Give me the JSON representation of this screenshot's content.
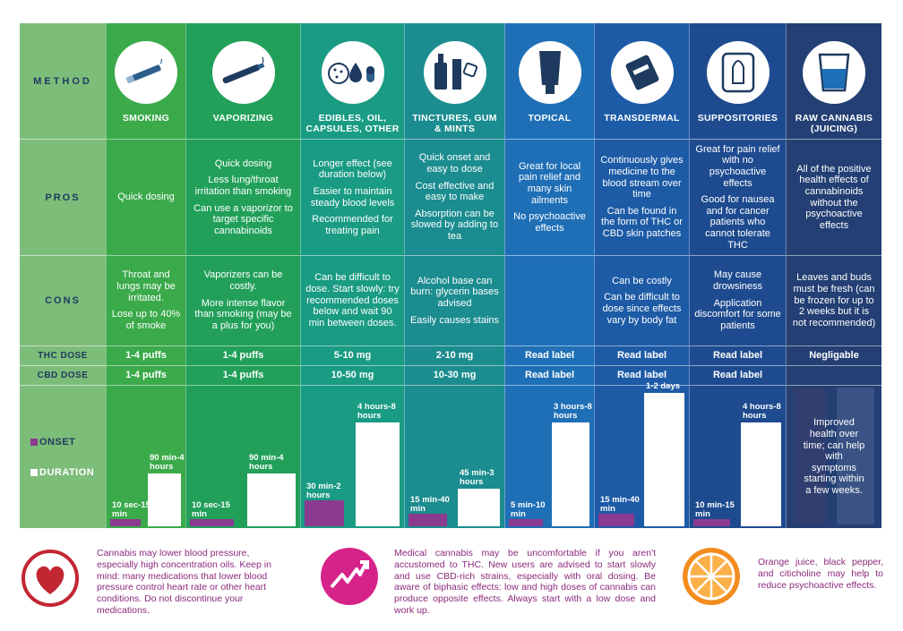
{
  "labels": {
    "method": "METHOD",
    "pros": "PROS",
    "cons": "CONS",
    "thc": "THC DOSE",
    "cbd": "CBD DOSE",
    "onset": "ONSET",
    "duration": "DURATION"
  },
  "methods": [
    {
      "name": "SMOKING",
      "pros": [
        "Quick dosing"
      ],
      "cons": [
        "Throat and lungs may be irritated.",
        "Lose up to 40% of smoke"
      ],
      "thc": "1-4 puffs",
      "cbd": "1-4 puffs",
      "onset_label": "10 sec-15 min",
      "duration_label": "90 min-4 hours",
      "onset_level": 0.05,
      "duration_level": 0.38
    },
    {
      "name": "VAPORIZING",
      "pros": [
        "Quick dosing",
        "Less lung/throat irritation than smoking",
        "Can use a vaporizor to target specific cannabinoids"
      ],
      "cons": [
        "Vaporizers can be costly.",
        "More intense flavor than smoking (may be a plus for you)"
      ],
      "thc": "1-4 puffs",
      "cbd": "1-4 puffs",
      "onset_label": "10 sec-15 min",
      "duration_label": "90 min-4 hours",
      "onset_level": 0.05,
      "duration_level": 0.38
    },
    {
      "name": "EDIBLES, OIL, CAPSULES, OTHER",
      "pros": [
        "Longer effect (see duration below)",
        "Easier to maintain steady blood levels",
        "Recommended for treating pain"
      ],
      "cons": [
        "Can be difficult to dose. Start slowly: try recommended doses below and wait 90 min between doses."
      ],
      "thc": "5-10 mg",
      "cbd": "10-50 mg",
      "onset_label": "30 min-2 hours",
      "duration_label": "4 hours-8 hours",
      "onset_level": 0.19,
      "duration_level": 0.75
    },
    {
      "name": "TINCTURES, GUM & MINTS",
      "pros": [
        "Quick onset and easy to dose",
        "Cost effective and easy to make",
        "Absorption can be slowed by adding to tea"
      ],
      "cons": [
        "Alcohol base can burn: glycerin bases advised",
        "Easily causes stains"
      ],
      "thc": "2-10 mg",
      "cbd": "10-30 mg",
      "onset_label": "15 min-40 min",
      "duration_label": "45 min-3 hours",
      "onset_level": 0.09,
      "duration_level": 0.27
    },
    {
      "name": "TOPICAL",
      "pros": [
        "Great for local pain relief and many skin ailments",
        "No psychoactive effects"
      ],
      "cons": [],
      "thc": "Read label",
      "cbd": "Read label",
      "onset_label": "5 min-10 min",
      "duration_label": "3 hours-8 hours",
      "onset_level": 0.05,
      "duration_level": 0.75
    },
    {
      "name": "TRANSDERMAL",
      "pros": [
        "Continuously gives medicine to the blood stream over time",
        "Can be found in the form of THC or CBD skin patches"
      ],
      "cons": [
        "Can be costly",
        "Can be difficult to dose since effects vary by body fat"
      ],
      "thc": "Read label",
      "cbd": "Read label",
      "onset_label": "15 min-40 min",
      "duration_label": "1-2 days",
      "onset_level": 0.09,
      "duration_level": 0.96
    },
    {
      "name": "SUPPOSITORIES",
      "pros": [
        "Great for pain relief with no psychoactive effects",
        "Good for nausea and for cancer patients who cannot tolerate THC"
      ],
      "cons": [
        "May cause drowsiness",
        "Application discomfort for some patients"
      ],
      "thc": "Read label",
      "cbd": "Read label",
      "onset_label": "10 min-15 min",
      "duration_label": "4 hours-8 hours",
      "onset_level": 0.05,
      "duration_level": 0.75
    },
    {
      "name": "RAW CANNABIS (JUICING)",
      "pros": [
        "All of the positive health effects of cannabinoids without the psychoactive effects"
      ],
      "cons": [
        "Leaves and buds must be fresh (can be frozen for up to 2 weeks but it is not recommended)"
      ],
      "thc": "Negligable",
      "cbd": "",
      "onset_label": "",
      "duration_label": "",
      "note": "Improved health over time; can help with symptoms starting within a few weeks."
    }
  ],
  "notes": {
    "heart": "Cannabis may lower blood pressure, especially high concentration oils. Keep in mind: many medications that lower blood pressure control heart rate or other heart conditions. Do not discontinue your medications.",
    "trend": "Medical cannabis may be uncomfortable if you aren't accustomed to THC. New users are advised to start slowly and use CBD-rich strains, especially with oral dosing. Be aware of biphasic effects: low and high doses of cannabis can produce opposite effects. Always start with a low dose and work up.",
    "orange": "Orange juice, black pepper, and citicholine may help to reduce psychoactive effects."
  },
  "colors": {
    "onset": "#8b3a8f",
    "duration": "#ffffff",
    "label_col": "#7dbd7a",
    "text_navy": "#1e3a5f",
    "note_text": "#8b2a7c"
  }
}
